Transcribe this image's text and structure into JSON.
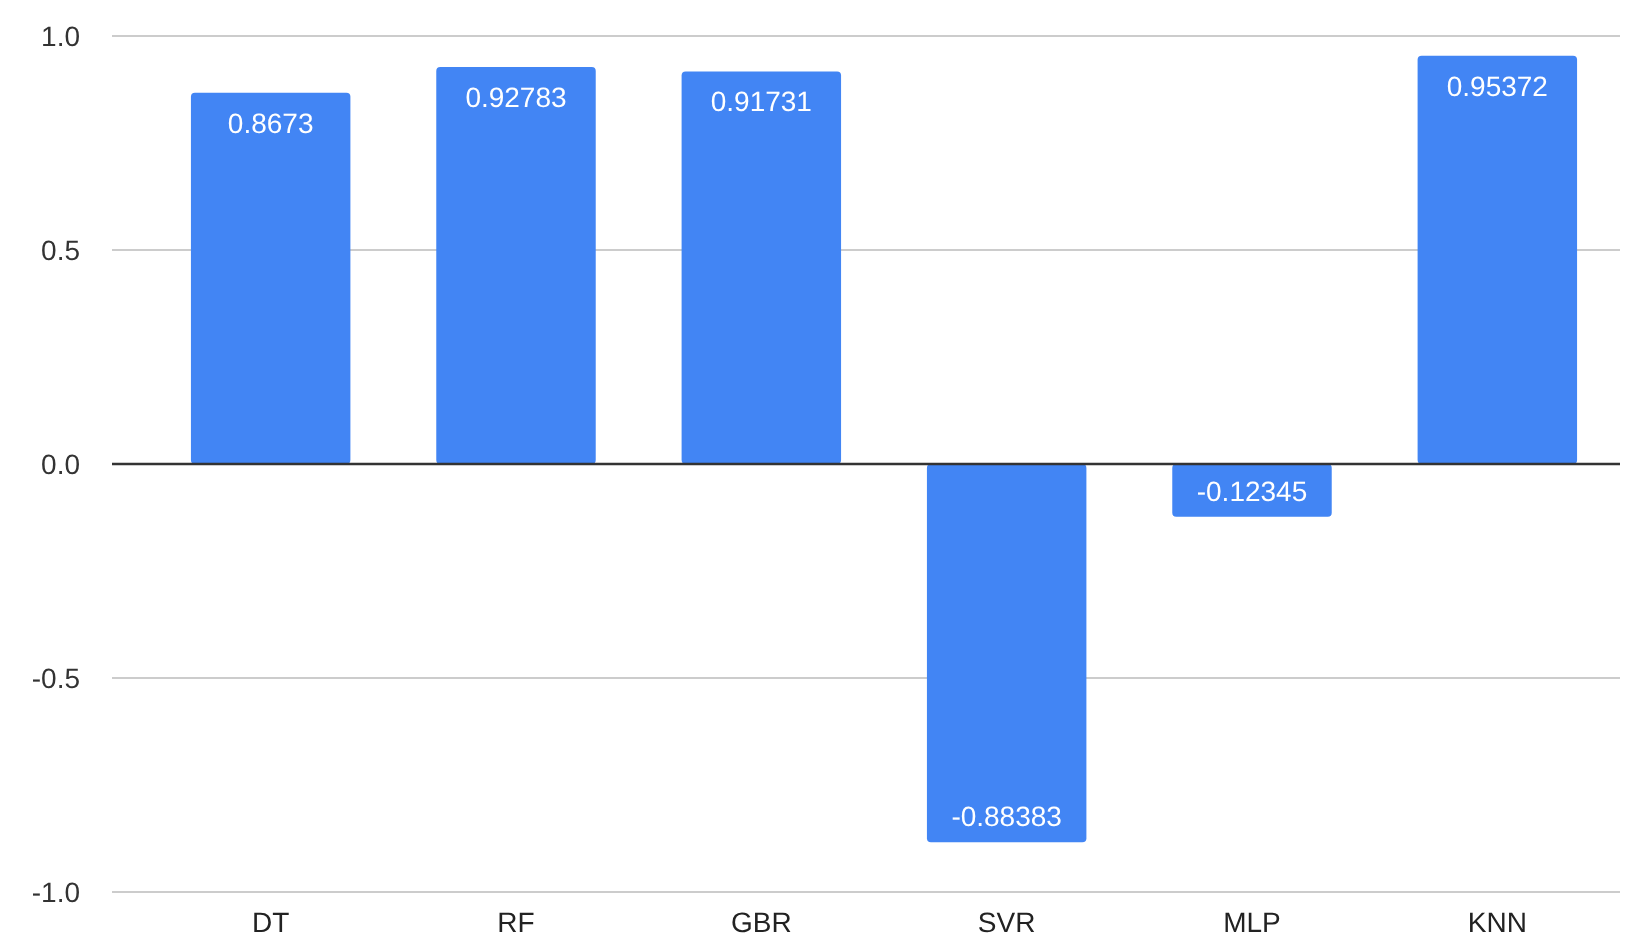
{
  "chart_data": {
    "type": "bar",
    "categories": [
      "DT",
      "RF",
      "GBR",
      "SVR",
      "MLP",
      "KNN"
    ],
    "values": [
      0.8673,
      0.92783,
      0.91731,
      -0.88383,
      -0.12345,
      0.95372
    ],
    "color": "#4285f4",
    "ylim": [
      -1,
      1
    ],
    "yticks": [
      {
        "value": -1,
        "label": "-1.0"
      },
      {
        "value": -0.5,
        "label": "-0.5"
      },
      {
        "value": 0,
        "label": "0.0"
      },
      {
        "value": 0.5,
        "label": "0.5"
      },
      {
        "value": 1,
        "label": "1.0"
      }
    ],
    "grid": "y",
    "data_labels": true
  }
}
